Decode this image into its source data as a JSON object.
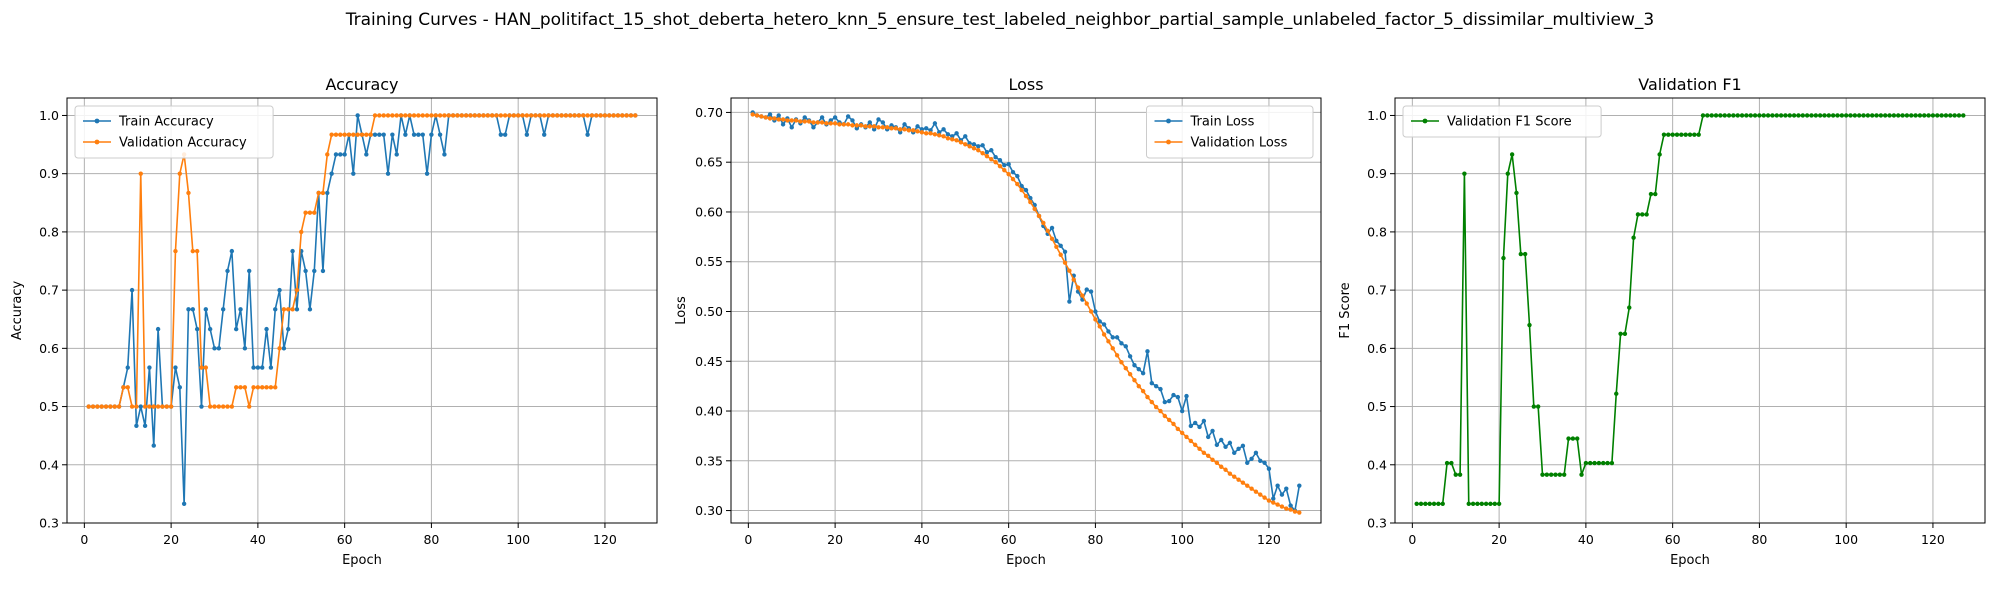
{
  "figure": {
    "title": "Training Curves - HAN_politifact_15_shot_deberta_hetero_knn_5_ensure_test_labeled_neighbor_partial_sample_unlabeled_factor_5_dissimilar_multiview_3"
  },
  "colors": {
    "blue": "#1f77b4",
    "orange": "#ff7f0e",
    "green": "#008000",
    "grid": "#b0b0b0"
  },
  "chart_data": [
    {
      "type": "line",
      "title": "Accuracy",
      "xlabel": "Epoch",
      "ylabel": "Accuracy",
      "xlim": [
        -4,
        132
      ],
      "ylim": [
        0.3,
        1.03
      ],
      "xticks": [
        0,
        20,
        40,
        60,
        80,
        100,
        120
      ],
      "yticks": [
        0.3,
        0.4,
        0.5,
        0.6,
        0.7,
        0.8,
        0.9,
        1.0
      ],
      "ytick_labels": [
        "0.3",
        "0.4",
        "0.5",
        "0.6",
        "0.7",
        "0.8",
        "0.9",
        "1.0"
      ],
      "grid": true,
      "legend_position": "upper-left",
      "x_start": 1,
      "series": [
        {
          "name": "Train Accuracy",
          "color": "#1f77b4",
          "values": [
            0.5,
            0.5,
            0.5,
            0.5,
            0.5,
            0.5,
            0.5,
            0.5,
            0.533,
            0.567,
            0.7,
            0.467,
            0.5,
            0.467,
            0.567,
            0.433,
            0.633,
            0.5,
            0.5,
            0.5,
            0.567,
            0.533,
            0.333,
            0.667,
            0.667,
            0.633,
            0.5,
            0.667,
            0.633,
            0.6,
            0.6,
            0.667,
            0.733,
            0.767,
            0.633,
            0.667,
            0.6,
            0.733,
            0.567,
            0.567,
            0.567,
            0.633,
            0.567,
            0.667,
            0.7,
            0.6,
            0.633,
            0.767,
            0.667,
            0.767,
            0.733,
            0.667,
            0.733,
            0.867,
            0.733,
            0.867,
            0.9,
            0.933,
            0.933,
            0.933,
            0.967,
            0.9,
            1.0,
            0.967,
            0.933,
            0.967,
            0.967,
            0.967,
            0.967,
            0.9,
            0.967,
            0.933,
            1.0,
            0.967,
            1.0,
            0.967,
            0.967,
            0.967,
            0.9,
            0.967,
            1.0,
            0.967,
            0.933,
            1.0,
            1.0,
            1.0,
            1.0,
            1.0,
            1.0,
            1.0,
            1.0,
            1.0,
            1.0,
            1.0,
            1.0,
            0.967,
            0.967,
            1.0,
            1.0,
            1.0,
            1.0,
            0.967,
            1.0,
            1.0,
            1.0,
            0.967,
            1.0,
            1.0,
            1.0,
            1.0,
            1.0,
            1.0,
            1.0,
            1.0,
            1.0,
            0.967,
            1.0,
            1.0,
            1.0,
            1.0,
            1.0,
            1.0,
            1.0,
            1.0,
            1.0,
            1.0,
            1.0
          ]
        },
        {
          "name": "Validation Accuracy",
          "color": "#ff7f0e",
          "values": [
            0.5,
            0.5,
            0.5,
            0.5,
            0.5,
            0.5,
            0.5,
            0.5,
            0.533,
            0.533,
            0.5,
            0.5,
            0.9,
            0.5,
            0.5,
            0.5,
            0.5,
            0.5,
            0.5,
            0.5,
            0.767,
            0.9,
            0.933,
            0.867,
            0.767,
            0.767,
            0.567,
            0.567,
            0.5,
            0.5,
            0.5,
            0.5,
            0.5,
            0.5,
            0.533,
            0.533,
            0.533,
            0.5,
            0.533,
            0.533,
            0.533,
            0.533,
            0.533,
            0.533,
            0.6,
            0.667,
            0.667,
            0.667,
            0.7,
            0.8,
            0.833,
            0.833,
            0.833,
            0.867,
            0.867,
            0.933,
            0.967,
            0.967,
            0.967,
            0.967,
            0.967,
            0.967,
            0.967,
            0.967,
            0.967,
            0.967,
            1.0,
            1.0,
            1.0,
            1.0,
            1.0,
            1.0,
            1.0,
            1.0,
            1.0,
            1.0,
            1.0,
            1.0,
            1.0,
            1.0,
            1.0,
            1.0,
            1.0,
            1.0,
            1.0,
            1.0,
            1.0,
            1.0,
            1.0,
            1.0,
            1.0,
            1.0,
            1.0,
            1.0,
            1.0,
            1.0,
            1.0,
            1.0,
            1.0,
            1.0,
            1.0,
            1.0,
            1.0,
            1.0,
            1.0,
            1.0,
            1.0,
            1.0,
            1.0,
            1.0,
            1.0,
            1.0,
            1.0,
            1.0,
            1.0,
            1.0,
            1.0,
            1.0,
            1.0,
            1.0,
            1.0,
            1.0,
            1.0,
            1.0,
            1.0,
            1.0,
            1.0
          ]
        }
      ]
    },
    {
      "type": "line",
      "title": "Loss",
      "xlabel": "Epoch",
      "ylabel": "Loss",
      "xlim": [
        -4,
        132
      ],
      "ylim": [
        0.2875,
        0.7145
      ],
      "xticks": [
        0,
        20,
        40,
        60,
        80,
        100,
        120
      ],
      "yticks": [
        0.3,
        0.35,
        0.4,
        0.45,
        0.5,
        0.55,
        0.6,
        0.65,
        0.7
      ],
      "ytick_labels": [
        "0.30",
        "0.35",
        "0.40",
        "0.45",
        "0.50",
        "0.55",
        "0.60",
        "0.65",
        "0.70"
      ],
      "grid": true,
      "legend_position": "upper-right",
      "x_start": 1,
      "series": [
        {
          "name": "Train Loss",
          "color": "#1f77b4",
          "values": [
            0.7,
            0.697,
            0.696,
            0.695,
            0.698,
            0.692,
            0.697,
            0.688,
            0.694,
            0.685,
            0.693,
            0.689,
            0.695,
            0.692,
            0.685,
            0.69,
            0.695,
            0.688,
            0.692,
            0.695,
            0.69,
            0.688,
            0.696,
            0.692,
            0.684,
            0.688,
            0.685,
            0.69,
            0.683,
            0.693,
            0.69,
            0.683,
            0.687,
            0.685,
            0.68,
            0.688,
            0.684,
            0.68,
            0.686,
            0.683,
            0.684,
            0.682,
            0.689,
            0.68,
            0.683,
            0.678,
            0.676,
            0.679,
            0.672,
            0.676,
            0.669,
            0.668,
            0.666,
            0.667,
            0.66,
            0.662,
            0.655,
            0.652,
            0.647,
            0.648,
            0.64,
            0.636,
            0.626,
            0.622,
            0.614,
            0.607,
            0.596,
            0.586,
            0.578,
            0.584,
            0.571,
            0.566,
            0.56,
            0.51,
            0.536,
            0.52,
            0.512,
            0.522,
            0.52,
            0.5,
            0.49,
            0.487,
            0.48,
            0.474,
            0.474,
            0.468,
            0.465,
            0.455,
            0.446,
            0.442,
            0.438,
            0.46,
            0.428,
            0.425,
            0.422,
            0.409,
            0.41,
            0.416,
            0.414,
            0.4,
            0.415,
            0.385,
            0.388,
            0.384,
            0.39,
            0.374,
            0.38,
            0.366,
            0.371,
            0.364,
            0.368,
            0.358,
            0.362,
            0.365,
            0.348,
            0.352,
            0.358,
            0.35,
            0.348,
            0.342,
            0.312,
            0.325,
            0.316,
            0.322,
            0.305,
            0.3,
            0.325
          ]
        },
        {
          "name": "Validation Loss",
          "color": "#ff7f0e",
          "values": [
            0.698,
            0.697,
            0.696,
            0.695,
            0.694,
            0.694,
            0.693,
            0.693,
            0.692,
            0.692,
            0.692,
            0.691,
            0.691,
            0.691,
            0.69,
            0.69,
            0.69,
            0.689,
            0.689,
            0.689,
            0.688,
            0.688,
            0.688,
            0.687,
            0.687,
            0.687,
            0.686,
            0.686,
            0.686,
            0.685,
            0.685,
            0.685,
            0.684,
            0.684,
            0.683,
            0.683,
            0.682,
            0.682,
            0.681,
            0.68,
            0.679,
            0.679,
            0.678,
            0.677,
            0.676,
            0.674,
            0.673,
            0.672,
            0.67,
            0.668,
            0.666,
            0.664,
            0.662,
            0.659,
            0.656,
            0.653,
            0.65,
            0.646,
            0.642,
            0.638,
            0.633,
            0.628,
            0.622,
            0.616,
            0.61,
            0.603,
            0.596,
            0.589,
            0.581,
            0.573,
            0.565,
            0.557,
            0.549,
            0.541,
            0.532,
            0.524,
            0.516,
            0.508,
            0.5,
            0.492,
            0.485,
            0.477,
            0.47,
            0.463,
            0.456,
            0.449,
            0.443,
            0.437,
            0.431,
            0.425,
            0.42,
            0.414,
            0.409,
            0.404,
            0.4,
            0.395,
            0.391,
            0.387,
            0.382,
            0.378,
            0.374,
            0.37,
            0.366,
            0.362,
            0.358,
            0.355,
            0.351,
            0.348,
            0.344,
            0.341,
            0.337,
            0.334,
            0.331,
            0.328,
            0.325,
            0.322,
            0.319,
            0.316,
            0.313,
            0.31,
            0.308,
            0.306,
            0.304,
            0.302,
            0.301,
            0.299,
            0.298
          ]
        }
      ]
    },
    {
      "type": "line",
      "title": "Validation F1",
      "xlabel": "Epoch",
      "ylabel": "F1 Score",
      "xlim": [
        -4,
        132
      ],
      "ylim": [
        0.3,
        1.03
      ],
      "xticks": [
        0,
        20,
        40,
        60,
        80,
        100,
        120
      ],
      "yticks": [
        0.3,
        0.4,
        0.5,
        0.6,
        0.7,
        0.8,
        0.9,
        1.0
      ],
      "ytick_labels": [
        "0.3",
        "0.4",
        "0.5",
        "0.6",
        "0.7",
        "0.8",
        "0.9",
        "1.0"
      ],
      "grid": true,
      "legend_position": "upper-left",
      "x_start": 1,
      "series": [
        {
          "name": "Validation F1 Score",
          "color": "#008000",
          "values": [
            0.333,
            0.333,
            0.333,
            0.333,
            0.333,
            0.333,
            0.333,
            0.403,
            0.403,
            0.383,
            0.383,
            0.9,
            0.333,
            0.333,
            0.333,
            0.333,
            0.333,
            0.333,
            0.333,
            0.333,
            0.755,
            0.9,
            0.933,
            0.867,
            0.762,
            0.762,
            0.64,
            0.5,
            0.5,
            0.383,
            0.383,
            0.383,
            0.383,
            0.383,
            0.383,
            0.445,
            0.445,
            0.445,
            0.383,
            0.403,
            0.403,
            0.403,
            0.403,
            0.403,
            0.403,
            0.403,
            0.522,
            0.625,
            0.625,
            0.67,
            0.79,
            0.83,
            0.83,
            0.83,
            0.865,
            0.865,
            0.933,
            0.967,
            0.967,
            0.967,
            0.967,
            0.967,
            0.967,
            0.967,
            0.967,
            0.967,
            1.0,
            1.0,
            1.0,
            1.0,
            1.0,
            1.0,
            1.0,
            1.0,
            1.0,
            1.0,
            1.0,
            1.0,
            1.0,
            1.0,
            1.0,
            1.0,
            1.0,
            1.0,
            1.0,
            1.0,
            1.0,
            1.0,
            1.0,
            1.0,
            1.0,
            1.0,
            1.0,
            1.0,
            1.0,
            1.0,
            1.0,
            1.0,
            1.0,
            1.0,
            1.0,
            1.0,
            1.0,
            1.0,
            1.0,
            1.0,
            1.0,
            1.0,
            1.0,
            1.0,
            1.0,
            1.0,
            1.0,
            1.0,
            1.0,
            1.0,
            1.0,
            1.0,
            1.0,
            1.0,
            1.0,
            1.0,
            1.0,
            1.0,
            1.0,
            1.0,
            1.0
          ]
        }
      ]
    }
  ]
}
